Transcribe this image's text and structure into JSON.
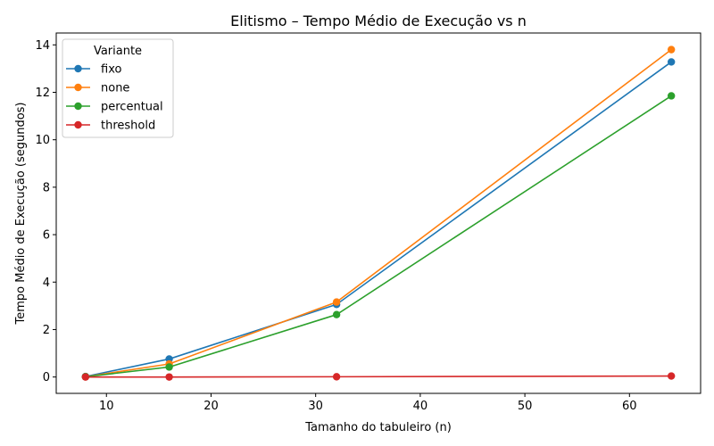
{
  "chart_data": {
    "type": "line",
    "title": "Elitismo – Tempo Médio de Execução vs n",
    "xlabel": "Tamanho do tabuleiro (n)",
    "ylabel": "Tempo Médio de Execução (segundos)",
    "x": [
      8,
      16,
      32,
      64
    ],
    "xlim": [
      5.2,
      66.8
    ],
    "ylim": [
      -0.69,
      14.5
    ],
    "xticks": [
      10,
      20,
      30,
      40,
      50,
      60
    ],
    "yticks": [
      0,
      2,
      4,
      6,
      8,
      10,
      12,
      14
    ],
    "grid": false,
    "legend": {
      "title": "Variante",
      "placement": "top-left"
    },
    "series": [
      {
        "name": "fixo",
        "color": "#1f77b4",
        "values": [
          0.02,
          0.76,
          3.06,
          13.28
        ]
      },
      {
        "name": "none",
        "color": "#ff7f0e",
        "values": [
          0.01,
          0.55,
          3.16,
          13.8
        ]
      },
      {
        "name": "percentual",
        "color": "#2ca02c",
        "values": [
          0.01,
          0.42,
          2.63,
          11.85
        ]
      },
      {
        "name": "threshold",
        "color": "#d62728",
        "values": [
          0.0,
          0.0,
          0.01,
          0.04
        ]
      }
    ]
  }
}
